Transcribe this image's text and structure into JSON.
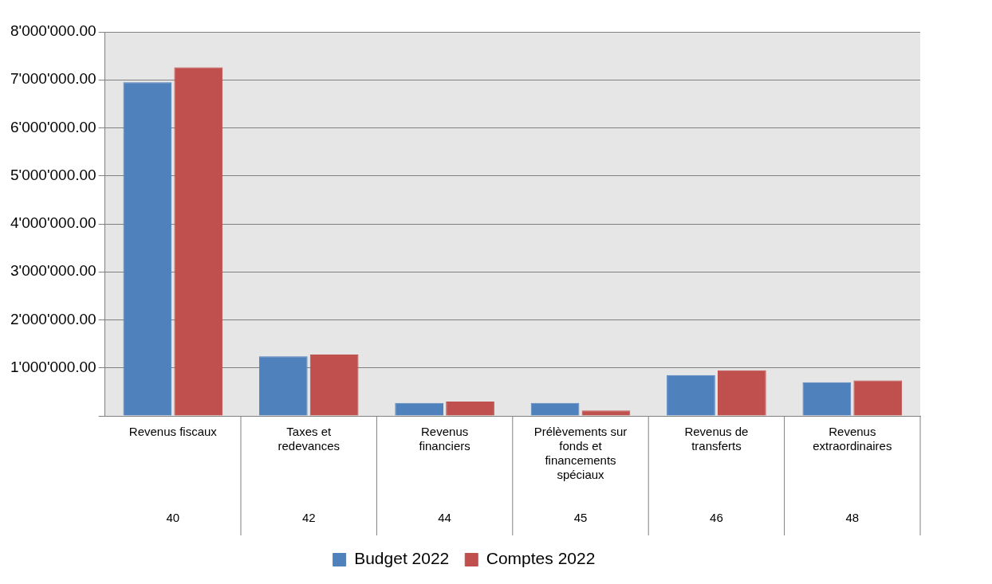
{
  "chart_data": {
    "type": "bar",
    "categories": [
      "Revenus fiscaux\n40",
      "Taxes et redevances\n42",
      "Revenus financiers\n44",
      "Prélèvements sur fonds et financements spéciaux\n45",
      "Revenus de transferts\n46",
      "Revenus extraordinaires\n48"
    ],
    "series": [
      {
        "name": "Budget 2022",
        "color": "#4f81bd",
        "values": [
          6950000,
          1240000,
          270000,
          270000,
          850000,
          700000
        ]
      },
      {
        "name": "Comptes 2022",
        "color": "#c0504d",
        "values": [
          7260000,
          1280000,
          300000,
          110000,
          950000,
          740000
        ]
      }
    ],
    "ylim": [
      0,
      8000000
    ],
    "yticks": [
      {
        "value": 0,
        "label": null
      },
      {
        "value": 1000000,
        "label": "1'000'000.00"
      },
      {
        "value": 2000000,
        "label": "2'000'000.00"
      },
      {
        "value": 3000000,
        "label": "3'000'000.00"
      },
      {
        "value": 4000000,
        "label": "4'000'000.00"
      },
      {
        "value": 5000000,
        "label": "5'000'000.00"
      },
      {
        "value": 6000000,
        "label": "6'000'000.00"
      },
      {
        "value": 7000000,
        "label": "7'000'000.00"
      },
      {
        "value": 8000000,
        "label": "8'000'000.00"
      }
    ],
    "grid": "y",
    "legend": "bottom"
  }
}
